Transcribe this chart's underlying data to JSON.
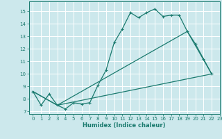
{
  "title": "",
  "xlabel": "Humidex (Indice chaleur)",
  "xlim": [
    -0.5,
    23
  ],
  "ylim": [
    6.8,
    15.8
  ],
  "yticks": [
    7,
    8,
    9,
    10,
    11,
    12,
    13,
    14,
    15
  ],
  "xticks": [
    0,
    1,
    2,
    3,
    4,
    5,
    6,
    7,
    8,
    9,
    10,
    11,
    12,
    13,
    14,
    15,
    16,
    17,
    18,
    19,
    20,
    21,
    22,
    23
  ],
  "bg_color": "#cce8ec",
  "grid_color": "#ffffff",
  "line_color": "#1a7a6e",
  "line1_x": [
    0,
    1,
    2,
    3,
    4,
    5,
    6,
    7,
    8,
    9,
    10,
    11,
    12,
    13,
    14,
    15,
    16,
    17,
    18,
    19,
    20,
    21,
    22
  ],
  "line1_y": [
    8.6,
    7.5,
    8.4,
    7.5,
    7.2,
    7.7,
    7.6,
    7.7,
    9.1,
    10.3,
    12.5,
    13.6,
    14.9,
    14.5,
    14.9,
    15.2,
    14.6,
    14.7,
    14.7,
    13.4,
    12.4,
    11.2,
    10.0
  ],
  "line2_x": [
    0,
    3,
    22
  ],
  "line2_y": [
    8.6,
    7.5,
    10.0
  ],
  "line3_x": [
    0,
    3,
    19,
    22
  ],
  "line3_y": [
    8.6,
    7.5,
    13.4,
    10.0
  ],
  "marker_size": 2.5,
  "linewidth": 0.9,
  "tick_fontsize": 5,
  "xlabel_fontsize": 6
}
